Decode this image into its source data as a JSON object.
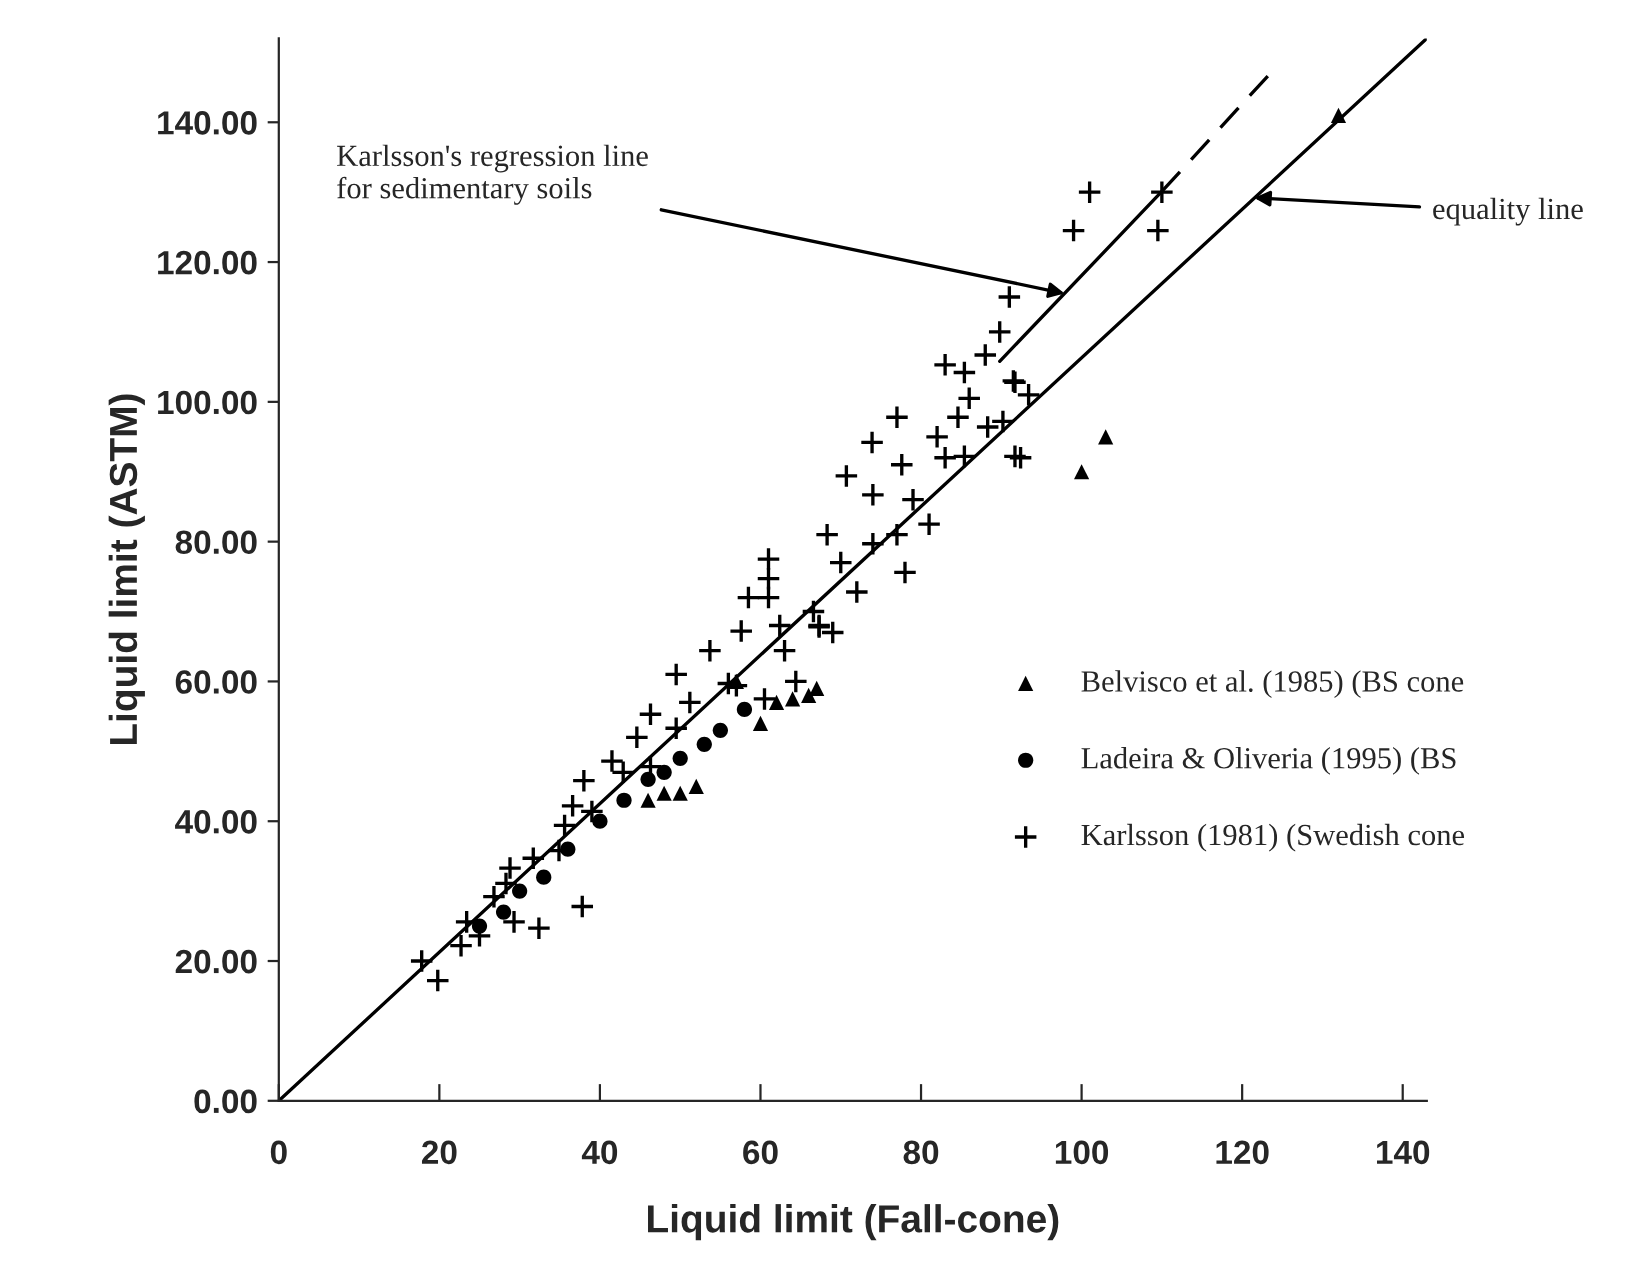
{
  "chart_data": {
    "type": "scatter",
    "xlabel": "Liquid limit (Fall-cone)",
    "ylabel": "Liquid limit (ASTM)",
    "xlim": [
      0,
      143
    ],
    "ylim": [
      0,
      152
    ],
    "xticks": [
      0,
      20,
      40,
      60,
      80,
      100,
      120,
      140
    ],
    "yticks": [
      {
        "value": 0,
        "label": "0.00"
      },
      {
        "value": 20,
        "label": "20.00"
      },
      {
        "value": 40,
        "label": "40.00"
      },
      {
        "value": 60,
        "label": "60.00"
      },
      {
        "value": 80,
        "label": "80.00"
      },
      {
        "value": 100,
        "label": "100.00"
      },
      {
        "value": 120,
        "label": "120.00"
      },
      {
        "value": 140,
        "label": "140.00"
      }
    ],
    "grid": false,
    "legend": "right",
    "series": [
      {
        "name": "Belvisco et al. (1985) (BS cone",
        "color": "#000000",
        "marker": "triangle",
        "x": [
          46,
          48,
          50,
          52,
          57,
          60,
          62,
          64,
          66,
          67,
          100,
          103,
          132
        ],
        "values": [
          43,
          44,
          44,
          45,
          60,
          54,
          57,
          57.5,
          58,
          59,
          90,
          95,
          141
        ]
      },
      {
        "name": "Ladeira & Oliveria (1995) (BS",
        "color": "#000000",
        "marker": "circle",
        "x": [
          25,
          28,
          30,
          33,
          36,
          40,
          43,
          46,
          48,
          50,
          53,
          55,
          58
        ],
        "values": [
          25,
          27,
          30,
          32,
          36,
          40,
          43,
          46,
          47,
          49,
          51,
          53,
          56
        ]
      },
      {
        "name": "Karlsson (1981) (Swedish cone",
        "color": "#000000",
        "marker": "cross",
        "x": [
          101,
          99,
          110,
          109.5,
          91,
          89.8,
          88,
          91.5,
          93.4,
          92.4,
          86,
          84.6,
          88.3,
          82,
          77.6,
          79,
          74,
          81,
          74,
          70,
          72,
          66.6,
          69,
          63,
          64.4,
          57,
          60.5,
          61,
          61,
          61,
          58.5,
          49.5,
          53.7,
          38,
          35.6,
          28.8,
          32.4,
          37.8,
          29.3,
          17.8,
          19.8,
          25,
          22.7,
          26.8,
          31.7,
          34.9,
          39,
          42.9,
          44.6,
          46.3,
          49.5,
          51.2,
          46.3,
          56,
          57.6,
          62.4,
          67.3,
          41.5,
          36.6,
          28.3,
          23.4,
          91.7,
          85.4,
          83,
          90.2,
          91.7,
          83,
          85.4,
          77,
          73.9,
          70.7,
          77,
          68.3,
          67.3,
          78
        ],
        "values": [
          130,
          124.5,
          130,
          124.5,
          115,
          110,
          106.7,
          103,
          101,
          92,
          100.5,
          97.8,
          96.4,
          95,
          91,
          86,
          86.7,
          82.5,
          79.7,
          77,
          72.8,
          70,
          67,
          64.4,
          60,
          59.4,
          57.5,
          77.5,
          74.7,
          72,
          72,
          61,
          64.4,
          45.8,
          39.4,
          33.3,
          24.7,
          27.8,
          25.6,
          20,
          17.2,
          23.6,
          22.2,
          29.2,
          34.7,
          35.8,
          41.4,
          47,
          52,
          47.8,
          53.3,
          57,
          55.3,
          59.7,
          67.2,
          68,
          67.8,
          48.6,
          42.2,
          31.1,
          25.6,
          92.2,
          92.2,
          92,
          97.2,
          102.8,
          105.3,
          104.2,
          97.8,
          94.2,
          89.4,
          81,
          81,
          68,
          75.6
        ]
      },
      {
        "type": "line",
        "color": "#000000",
        "line_style": "solid",
        "x": [
          0,
          143
        ],
        "values": [
          0,
          152
        ]
      },
      {
        "type": "line",
        "color": "#000000",
        "line_style": "solid",
        "x": [
          89.8,
          110
        ],
        "values": [
          105.8,
          130.1
        ]
      },
      {
        "type": "line",
        "color": "#000000",
        "line_style": "dashed",
        "x": [
          110,
          123.9
        ],
        "values": [
          130.1,
          147.5
        ]
      }
    ],
    "annotations": [
      {
        "text": "Karlsson's regression line\nfor sedimentary soils",
        "x": 97.9,
        "y": 115.5
      },
      {
        "text": "equality line",
        "x": 121.5,
        "y": 129.2
      }
    ]
  }
}
